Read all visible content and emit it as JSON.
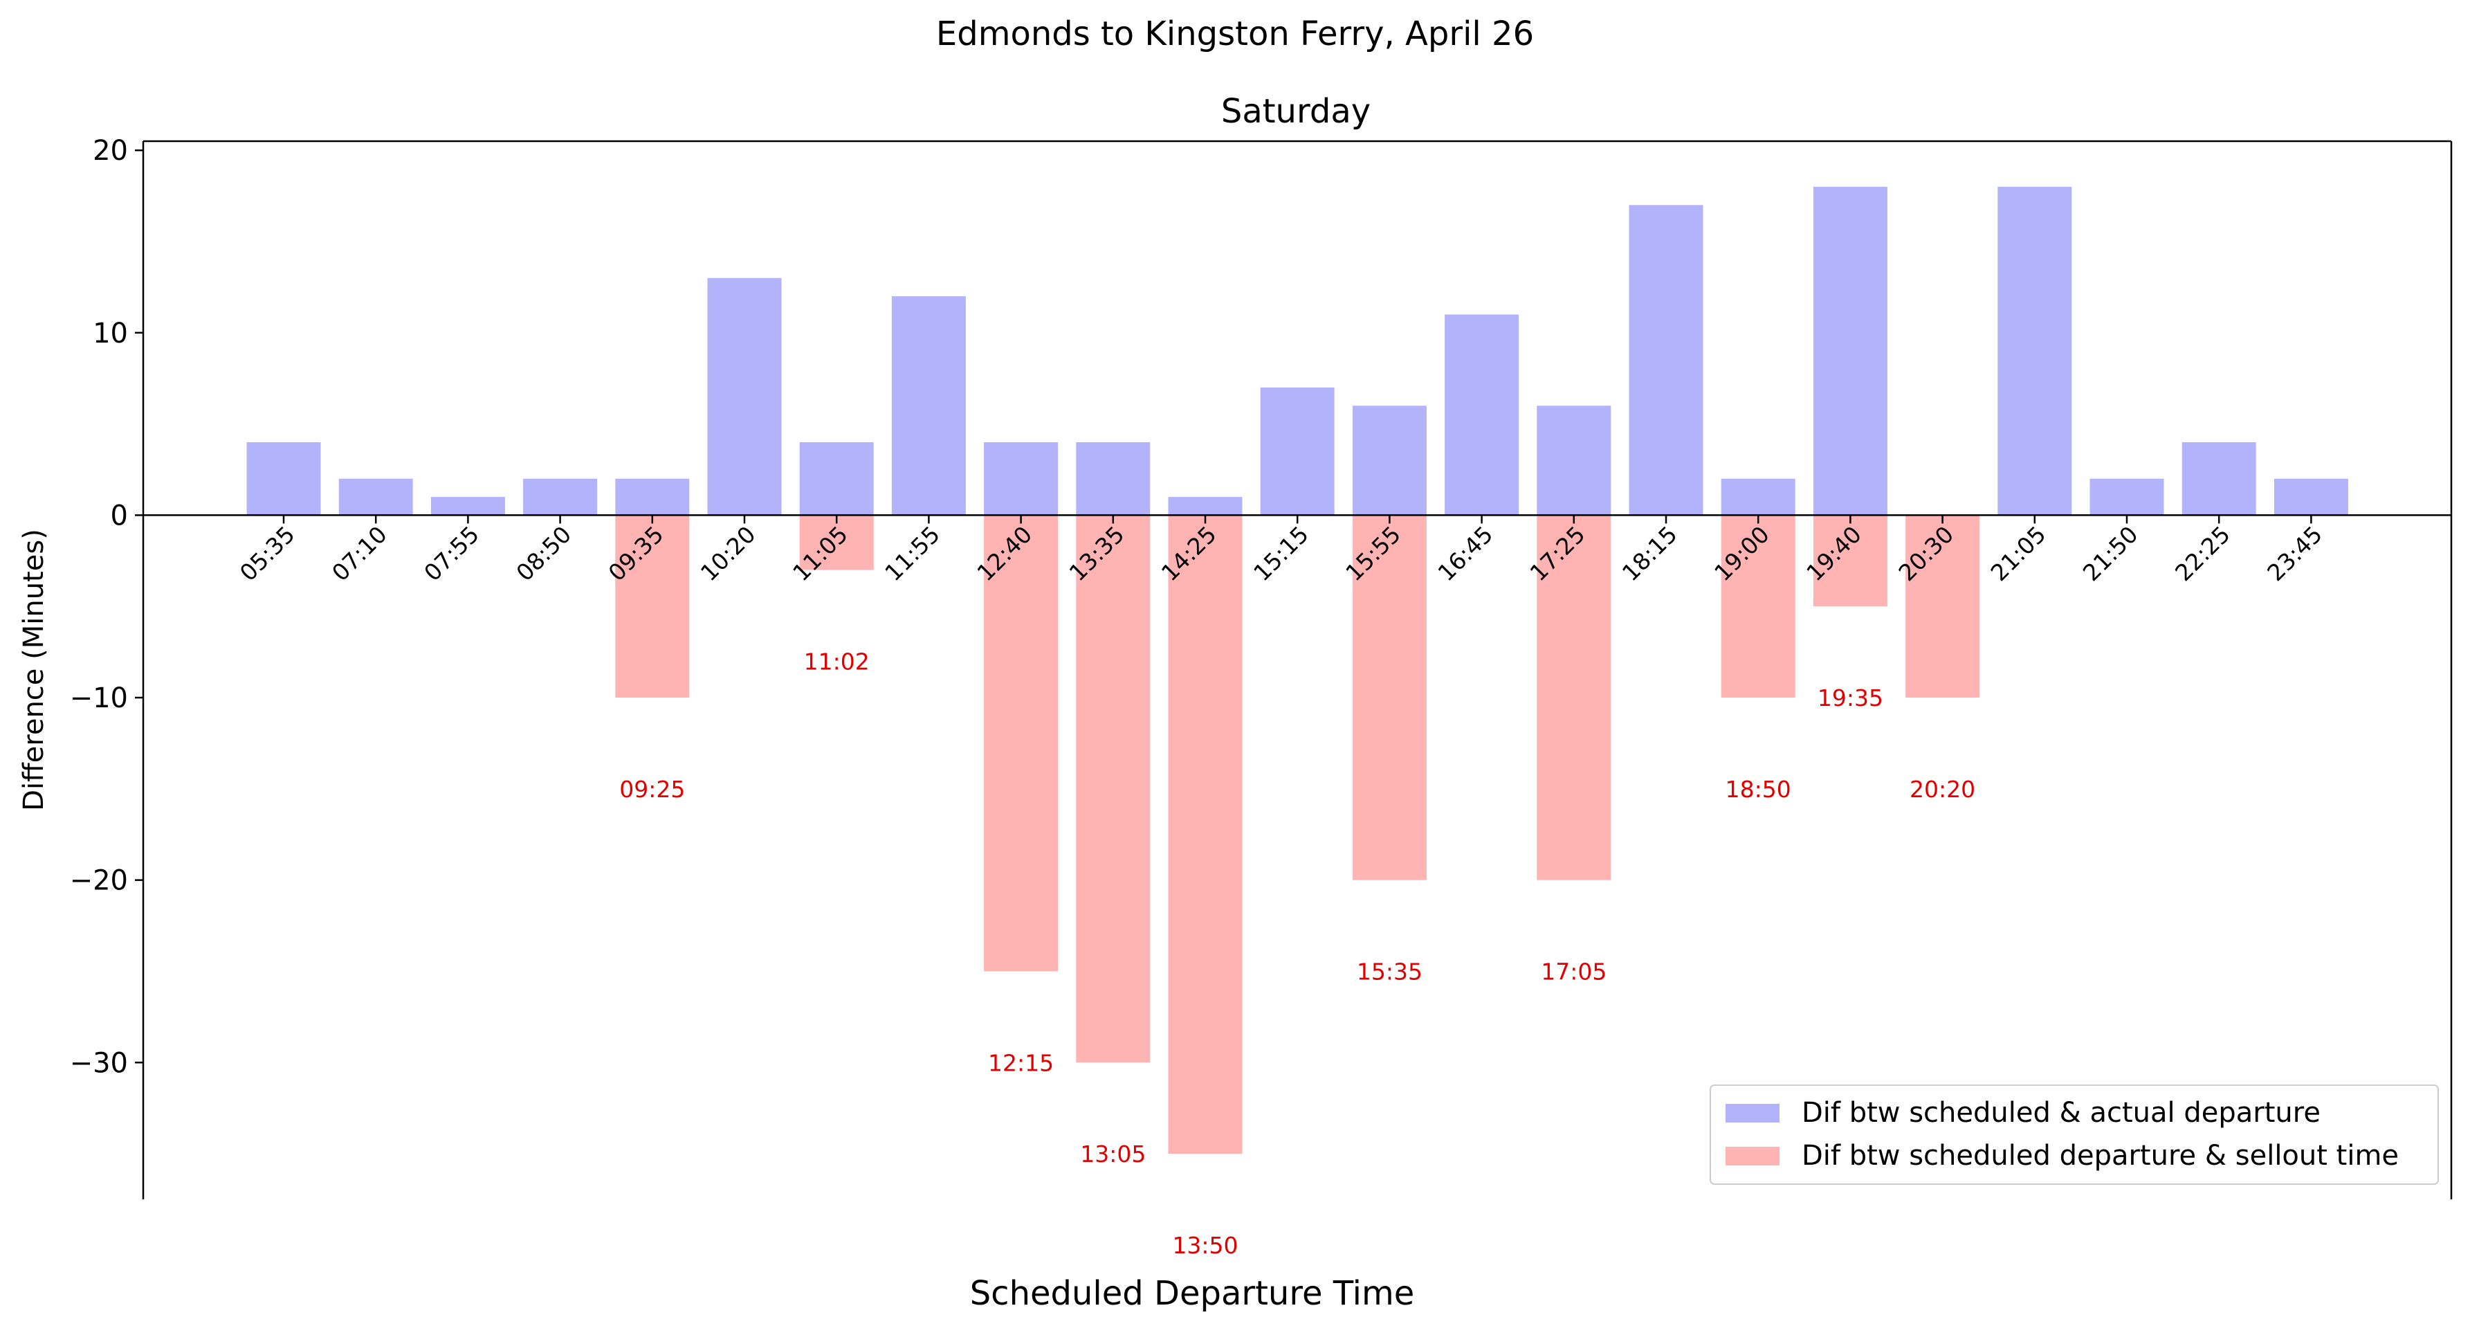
{
  "chart_data": {
    "type": "bar",
    "suptitle": "Edmonds to Kingston Ferry, April 26",
    "title": "Saturday",
    "xlabel": "Scheduled Departure Time",
    "ylabel": "Difference (Minutes)",
    "ylim": [
      -37.5,
      20.5
    ],
    "yticks": [
      20,
      10,
      0,
      -10,
      -20,
      -30
    ],
    "ytick_labels": [
      "20",
      "10",
      "0",
      "−10",
      "−20",
      "−30"
    ],
    "categories": [
      "05:35",
      "07:10",
      "07:55",
      "08:50",
      "09:35",
      "10:20",
      "11:05",
      "11:55",
      "12:40",
      "13:35",
      "14:25",
      "15:15",
      "15:55",
      "16:45",
      "17:25",
      "18:15",
      "19:00",
      "19:40",
      "20:30",
      "21:05",
      "21:50",
      "22:25",
      "23:45"
    ],
    "series": [
      {
        "name": "Dif btw scheduled & actual departure",
        "color": "#b3b3fb",
        "values": [
          4,
          2,
          1,
          2,
          2,
          13,
          4,
          12,
          4,
          4,
          1,
          7,
          6,
          11,
          6,
          17,
          2,
          18,
          0,
          18,
          2,
          4,
          2
        ]
      },
      {
        "name": "Dif btw scheduled departure & sellout time",
        "color": "#ffb3b3",
        "values": [
          null,
          null,
          null,
          null,
          -10,
          null,
          -3,
          null,
          -25,
          -30,
          -35,
          null,
          -20,
          null,
          -20,
          null,
          -10,
          -5,
          -10,
          null,
          null,
          null,
          null
        ],
        "labels": [
          null,
          null,
          null,
          null,
          "09:25",
          null,
          "11:02",
          null,
          "12:15",
          "13:05",
          "13:50",
          null,
          "15:35",
          null,
          "17:05",
          null,
          "18:50",
          "19:35",
          "20:20",
          null,
          null,
          null,
          null
        ]
      }
    ],
    "sellout_label_color": "#e00000",
    "legend": "lower-right",
    "grid": false
  }
}
